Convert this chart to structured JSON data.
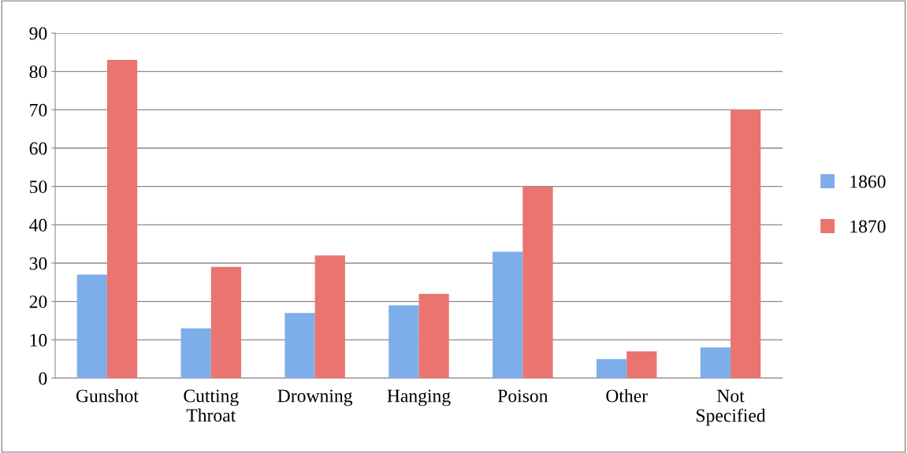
{
  "chart_data": {
    "type": "bar",
    "categories": [
      "Gunshot",
      "Cutting\nThroat",
      "Drowning",
      "Hanging",
      "Poison",
      "Other",
      "Not\nSpecified"
    ],
    "series": [
      {
        "name": "1860",
        "color": "#7eaeea",
        "values": [
          27,
          13,
          17,
          19,
          33,
          5,
          8
        ]
      },
      {
        "name": "1870",
        "color": "#ea7470",
        "values": [
          83,
          29,
          32,
          22,
          50,
          7,
          70
        ]
      }
    ],
    "ylim": [
      0,
      90
    ],
    "yticks": [
      0,
      10,
      20,
      30,
      40,
      50,
      60,
      70,
      80,
      90
    ],
    "grid": "y",
    "legend": "right"
  }
}
